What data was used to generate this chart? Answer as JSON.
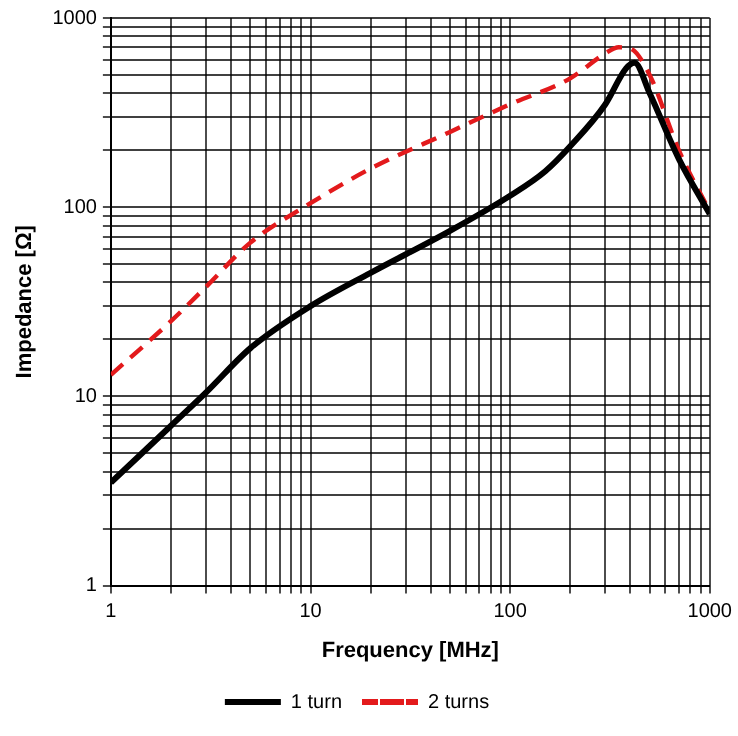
{
  "chart_data": {
    "type": "line",
    "xlabel": "Frequency [MHz]",
    "ylabel": "Impedance [Ω]",
    "log": "xy",
    "grid": true,
    "legend": "bottom",
    "marker": "none",
    "xlim": [
      1,
      1000
    ],
    "ylim": [
      1,
      1000
    ],
    "xticks": [
      1,
      {
        "value": 2,
        "label": null
      },
      {
        "value": 3,
        "label": null
      },
      {
        "value": 4,
        "label": null
      },
      {
        "value": 5,
        "label": null
      },
      {
        "value": 6,
        "label": null
      },
      {
        "value": 7,
        "label": null
      },
      {
        "value": 8,
        "label": null
      },
      {
        "value": 9,
        "label": null
      },
      10,
      {
        "value": 20,
        "label": null
      },
      {
        "value": 30,
        "label": null
      },
      {
        "value": 40,
        "label": null
      },
      {
        "value": 50,
        "label": null
      },
      {
        "value": 60,
        "label": null
      },
      {
        "value": 70,
        "label": null
      },
      {
        "value": 80,
        "label": null
      },
      {
        "value": 90,
        "label": null
      },
      100,
      {
        "value": 200,
        "label": null
      },
      {
        "value": 300,
        "label": null
      },
      {
        "value": 400,
        "label": null
      },
      {
        "value": 500,
        "label": null
      },
      {
        "value": 600,
        "label": null
      },
      {
        "value": 700,
        "label": null
      },
      {
        "value": 800,
        "label": null
      },
      {
        "value": 900,
        "label": null
      },
      1000
    ],
    "yticks": [
      1,
      {
        "value": 2,
        "label": null
      },
      {
        "value": 3,
        "label": null
      },
      {
        "value": 4,
        "label": null
      },
      {
        "value": 5,
        "label": null
      },
      {
        "value": 6,
        "label": null
      },
      {
        "value": 7,
        "label": null
      },
      {
        "value": 8,
        "label": null
      },
      {
        "value": 9,
        "label": null
      },
      10,
      {
        "value": 20,
        "label": null
      },
      {
        "value": 30,
        "label": null
      },
      {
        "value": 40,
        "label": null
      },
      {
        "value": 50,
        "label": null
      },
      {
        "value": 60,
        "label": null
      },
      {
        "value": 70,
        "label": null
      },
      {
        "value": 80,
        "label": null
      },
      {
        "value": 90,
        "label": null
      },
      100,
      {
        "value": 200,
        "label": null
      },
      {
        "value": 300,
        "label": null
      },
      {
        "value": 400,
        "label": null
      },
      {
        "value": 500,
        "label": null
      },
      {
        "value": 600,
        "label": null
      },
      {
        "value": 700,
        "label": null
      },
      {
        "value": 800,
        "label": null
      },
      {
        "value": 900,
        "label": null
      },
      1000
    ],
    "series": [
      {
        "name": "1 turn",
        "color": "#000000",
        "line_style": "solid",
        "x": [
          1,
          2,
          3,
          5,
          10,
          20,
          50,
          100,
          150,
          200,
          300,
          380,
          420,
          500,
          700,
          1000
        ],
        "values": [
          3.5,
          7,
          10.5,
          18,
          30,
          45,
          75,
          115,
          155,
          210,
          350,
          540,
          580,
          400,
          180,
          92
        ]
      },
      {
        "name": "2 turns",
        "color": "#e31a1c",
        "line_style": "dashed",
        "x": [
          1,
          2,
          3,
          5,
          10,
          20,
          50,
          100,
          200,
          300,
          350,
          400,
          500,
          700,
          1000
        ],
        "values": [
          13,
          25,
          38,
          65,
          105,
          160,
          250,
          350,
          480,
          650,
          700,
          690,
          500,
          200,
          95
        ]
      }
    ]
  }
}
